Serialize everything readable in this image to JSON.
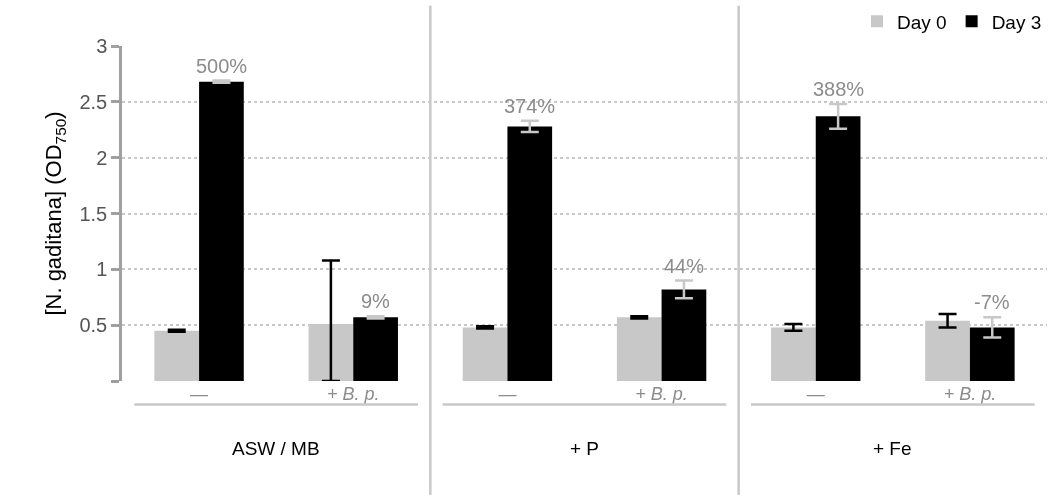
{
  "chart_data": {
    "type": "bar",
    "ylabel": "[N. gaditana] (OD$_{750}$)",
    "categories": [
      "—",
      "+ B. p.",
      "—",
      "+ B. p.",
      "—",
      "+ B. p."
    ],
    "series": [
      {
        "name": "Day 0",
        "color": "#c8c8c8",
        "values": [
          0.45,
          0.51,
          0.48,
          0.57,
          0.48,
          0.54
        ],
        "errors": [
          0.01,
          [
            0,
            1.08
          ],
          0.01,
          0.01,
          0.03,
          0.06
        ]
      },
      {
        "name": "Day 3",
        "color": "#000000",
        "values": [
          2.68,
          0.57,
          2.28,
          0.82,
          2.37,
          0.48
        ],
        "errors": [
          0.01,
          0.01,
          0.05,
          0.08,
          0.11,
          0.09
        ]
      }
    ],
    "annotations": [
      "ASW / MB",
      "+ P",
      "+ Fe",
      {
        "text": "500%",
        "y": 2.68
      },
      {
        "text": "9%",
        "y": 0.57
      },
      {
        "text": "374%",
        "y": 2.28
      },
      {
        "text": "44%",
        "y": 0.82
      },
      {
        "text": "388%",
        "y": 2.37
      },
      {
        "text": "-7%",
        "y": 0.48
      }
    ],
    "ylim": [
      0,
      3
    ],
    "yticks": [
      {
        "value": 0,
        "label": null
      },
      0.5,
      1,
      1.5,
      2,
      2.5,
      3
    ],
    "grid": "y",
    "legend": "top right"
  }
}
